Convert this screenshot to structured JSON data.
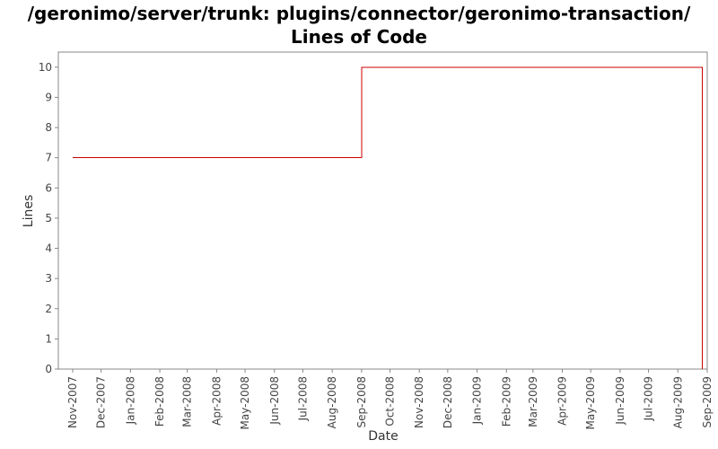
{
  "chart_data": {
    "type": "line",
    "title": "/geronimo/server/trunk: plugins/connector/geronimo-transaction/ Lines of Code",
    "xlabel": "Date",
    "ylabel": "Lines",
    "x_ticks": [
      "Nov-2007",
      "Dec-2007",
      "Jan-2008",
      "Feb-2008",
      "Mar-2008",
      "Apr-2008",
      "May-2008",
      "Jun-2008",
      "Jul-2008",
      "Aug-2008",
      "Sep-2008",
      "Oct-2008",
      "Nov-2008",
      "Dec-2008",
      "Jan-2009",
      "Feb-2009",
      "Mar-2009",
      "Apr-2009",
      "May-2009",
      "Jun-2009",
      "Jul-2009",
      "Aug-2009",
      "Sep-2009"
    ],
    "y_ticks": [
      0,
      1,
      2,
      3,
      4,
      5,
      6,
      7,
      8,
      9,
      10
    ],
    "ylim": [
      0,
      10.5
    ],
    "grid": false,
    "line_color": "#cc0000",
    "series": [
      {
        "step": true,
        "points": [
          {
            "x": "2007-11-01",
            "y": 7
          },
          {
            "x": "2008-09-01",
            "y": 10
          },
          {
            "x": "2009-08-27",
            "y": 0
          }
        ]
      }
    ]
  }
}
